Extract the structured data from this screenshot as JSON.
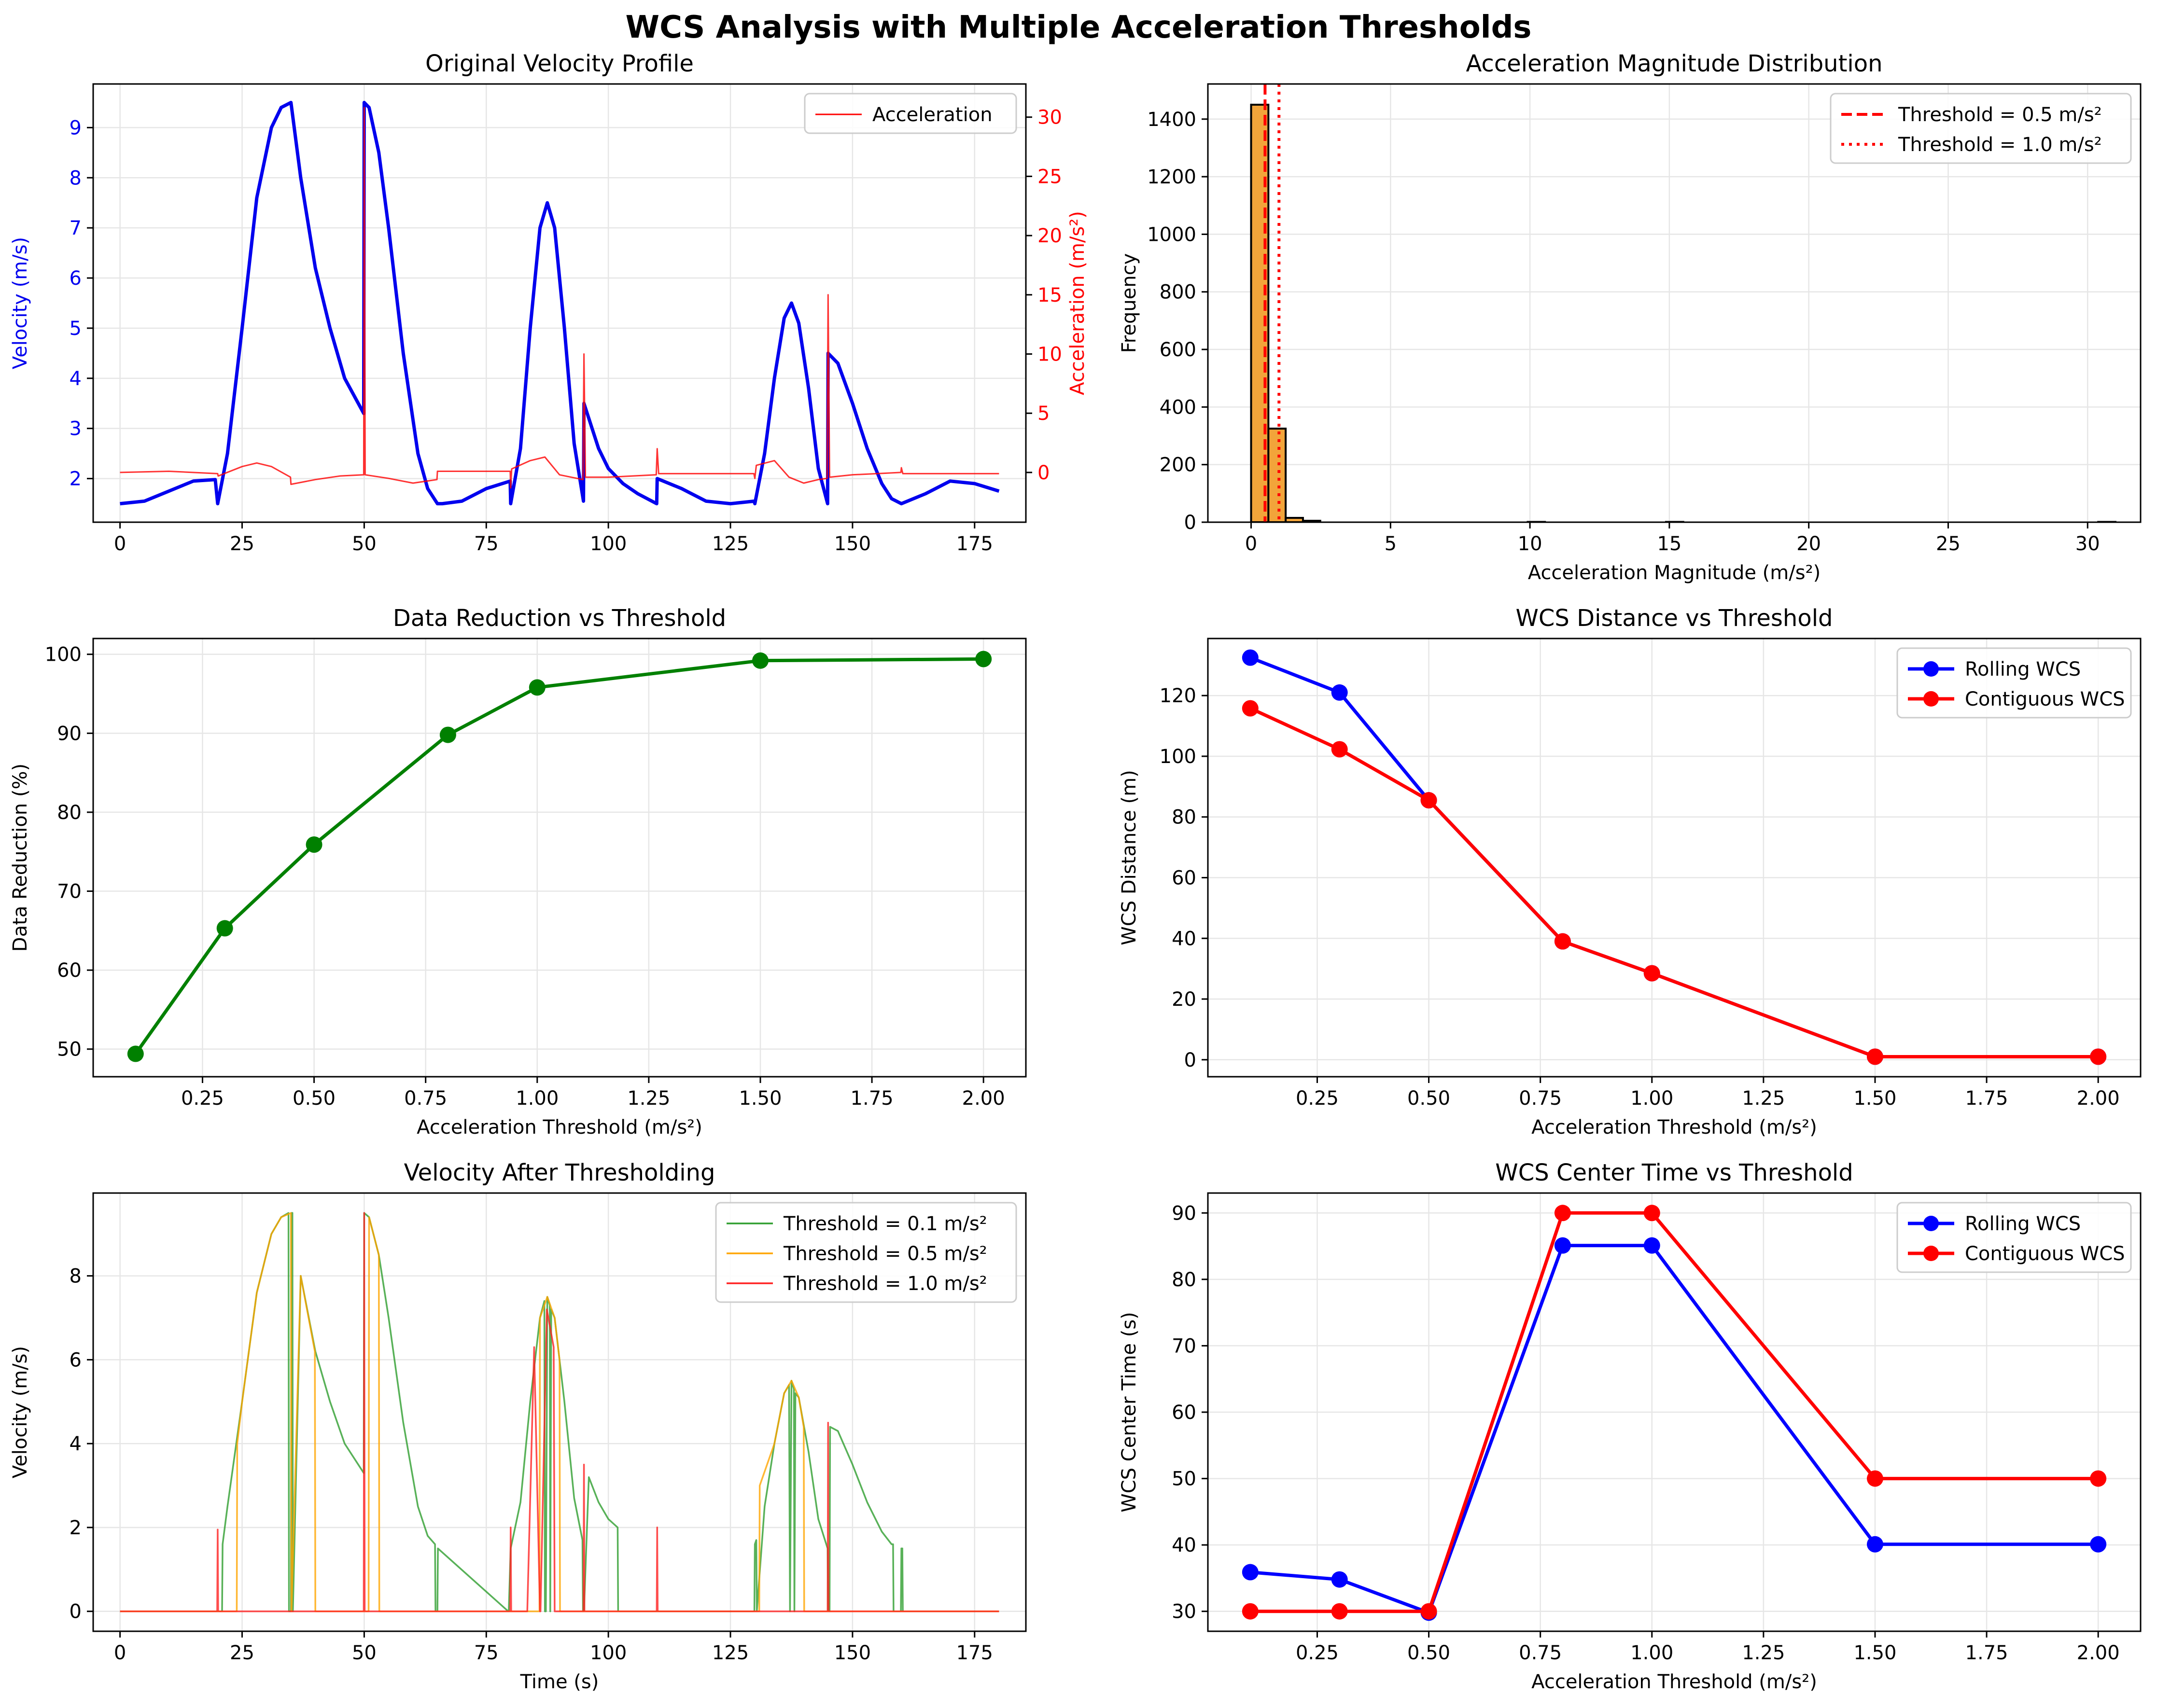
{
  "figure": {
    "suptitle": "WCS Analysis with Multiple Acceleration Thresholds"
  },
  "colors": {
    "velocity": "#0000ee",
    "acceleration": "#ff0000",
    "hist_fill": "#f2a43a",
    "reduction": "#008000",
    "rolling": "#0000ff",
    "contiguous": "#ff0000",
    "thr_01": "#2e9e2e",
    "thr_05": "#ffa500",
    "thr_10": "#ff2020"
  },
  "chart_data": [
    {
      "id": "velocity-profile",
      "type": "line",
      "title": "Original Velocity Profile",
      "xlabel": "",
      "ylabel": "Velocity (m/s)",
      "y2label": "Acceleration (m/s²)",
      "xlim": [
        -5.5,
        185.5
      ],
      "ylim": [
        1.13,
        9.87
      ],
      "y2lim": [
        -4.2,
        32.8
      ],
      "xticks": [
        0,
        25,
        50,
        75,
        100,
        125,
        150,
        175
      ],
      "yticks": [
        2,
        3,
        4,
        5,
        6,
        7,
        8,
        9
      ],
      "y2ticks": [
        0,
        5,
        10,
        15,
        20,
        25,
        30
      ],
      "legend": {
        "loc": "upper-right",
        "entries": [
          "Acceleration"
        ]
      },
      "grid": true,
      "series": [
        {
          "name": "Velocity",
          "axis": "left",
          "x": [
            0,
            5,
            10,
            15,
            19.5,
            20,
            22,
            25,
            28,
            31,
            33,
            35,
            37,
            40,
            43,
            46,
            49.9,
            50,
            51,
            53,
            55,
            58,
            61,
            63,
            65,
            66,
            70,
            75,
            79.9,
            80,
            82,
            84,
            86,
            87.5,
            89,
            91,
            93,
            94.9,
            95,
            96,
            98,
            100,
            103,
            106,
            109.9,
            110,
            115,
            120,
            125,
            129.9,
            130,
            132,
            134,
            136,
            137.5,
            139,
            141,
            143,
            144.9,
            145,
            147,
            150,
            153,
            156,
            158,
            160,
            165,
            170,
            175,
            180
          ],
          "y": [
            1.5,
            1.55,
            1.75,
            1.95,
            1.98,
            1.5,
            2.5,
            5.0,
            7.6,
            9.0,
            9.4,
            9.5,
            8.0,
            6.2,
            5.0,
            4.0,
            3.3,
            9.5,
            9.4,
            8.5,
            7.0,
            4.5,
            2.5,
            1.8,
            1.5,
            1.5,
            1.55,
            1.8,
            1.95,
            1.5,
            2.6,
            5.0,
            7.0,
            7.5,
            7.0,
            5.0,
            2.7,
            1.55,
            3.5,
            3.2,
            2.6,
            2.2,
            1.9,
            1.7,
            1.5,
            2.0,
            1.8,
            1.55,
            1.5,
            1.55,
            1.5,
            2.5,
            4.0,
            5.2,
            5.5,
            5.1,
            3.8,
            2.2,
            1.5,
            4.5,
            4.3,
            3.5,
            2.6,
            1.9,
            1.6,
            1.5,
            1.7,
            1.95,
            1.9,
            1.75
          ]
        },
        {
          "name": "Acceleration",
          "axis": "right",
          "x": [
            0,
            10,
            20,
            20.1,
            25,
            28,
            31,
            34.9,
            35,
            40,
            45,
            49.9,
            50,
            50.2,
            55,
            60,
            64.9,
            65,
            70,
            79.9,
            80,
            80.2,
            84,
            87,
            90,
            94.8,
            95,
            95.3,
            100,
            109.8,
            110,
            110.3,
            115,
            125,
            129.8,
            130,
            130.3,
            134,
            137,
            140,
            143,
            144.8,
            145,
            145.3,
            150,
            155,
            159.9,
            160,
            160.3,
            170,
            180
          ],
          "y": [
            0,
            0.1,
            -0.1,
            -0.3,
            0.5,
            0.8,
            0.5,
            -0.4,
            -1.0,
            -0.6,
            -0.3,
            -0.2,
            30.8,
            -0.2,
            -0.5,
            -0.9,
            -0.6,
            0.1,
            0.1,
            0.1,
            -1.3,
            0.3,
            1.0,
            1.3,
            -0.2,
            -0.6,
            10.0,
            -0.4,
            -0.4,
            -0.2,
            2.0,
            -0.1,
            -0.1,
            -0.1,
            -0.1,
            -0.5,
            0.6,
            1.0,
            -0.4,
            -0.9,
            -0.6,
            -0.5,
            15.0,
            -0.4,
            -0.2,
            -0.1,
            0,
            0.4,
            -0.1,
            -0.1,
            -0.1
          ]
        }
      ]
    },
    {
      "id": "accel-histogram",
      "type": "bar",
      "title": "Acceleration Magnitude Distribution",
      "xlabel": "Acceleration Magnitude (m/s²)",
      "ylabel": "Frequency",
      "xlim": [
        -1.55,
        31.9
      ],
      "ylim": [
        0,
        1522
      ],
      "xticks": [
        0,
        5,
        10,
        15,
        20,
        25,
        30
      ],
      "yticks": [
        0,
        200,
        400,
        600,
        800,
        1000,
        1200,
        1400
      ],
      "grid": true,
      "legend": {
        "loc": "upper-right",
        "entries": [
          "Threshold = 0.5 m/s²",
          "Threshold = 1.0 m/s²"
        ]
      },
      "bin_width": 0.62,
      "bins": [
        {
          "x": 0.0,
          "count": 1450
        },
        {
          "x": 0.62,
          "count": 325
        },
        {
          "x": 1.24,
          "count": 15
        },
        {
          "x": 1.86,
          "count": 5
        },
        {
          "x": 9.92,
          "count": 1
        },
        {
          "x": 14.88,
          "count": 1
        },
        {
          "x": 30.38,
          "count": 1
        }
      ],
      "vlines": [
        {
          "x": 0.5,
          "style": "dashed",
          "name": "Threshold = 0.5 m/s²"
        },
        {
          "x": 1.0,
          "style": "dotted",
          "name": "Threshold = 1.0 m/s²"
        }
      ]
    },
    {
      "id": "data-reduction",
      "type": "line",
      "title": "Data Reduction vs Threshold",
      "xlabel": "Acceleration Threshold (m/s²)",
      "ylabel": "Data Reduction (%)",
      "xlim": [
        0.005,
        2.095
      ],
      "ylim": [
        46.5,
        102.0
      ],
      "xticks": [
        0.25,
        0.5,
        0.75,
        1.0,
        1.25,
        1.5,
        1.75,
        2.0
      ],
      "xtick_labels": [
        "0.25",
        "0.50",
        "0.75",
        "1.00",
        "1.25",
        "1.50",
        "1.75",
        "2.00"
      ],
      "yticks": [
        50,
        60,
        70,
        80,
        90,
        100
      ],
      "grid": true,
      "series": [
        {
          "x": [
            0.1,
            0.3,
            0.5,
            0.8,
            1.0,
            1.5,
            2.0
          ],
          "y": [
            49.4,
            65.3,
            75.9,
            89.8,
            95.8,
            99.2,
            99.4
          ]
        }
      ]
    },
    {
      "id": "wcs-distance",
      "type": "line",
      "title": "WCS Distance vs Threshold",
      "xlabel": "Acceleration Threshold (m/s²)",
      "ylabel": "WCS Distance (m)",
      "xlim": [
        0.005,
        2.095
      ],
      "ylim": [
        -5.6,
        138.8
      ],
      "xticks": [
        0.25,
        0.5,
        0.75,
        1.0,
        1.25,
        1.5,
        1.75,
        2.0
      ],
      "xtick_labels": [
        "0.25",
        "0.50",
        "0.75",
        "1.00",
        "1.25",
        "1.50",
        "1.75",
        "2.00"
      ],
      "yticks": [
        0,
        20,
        40,
        60,
        80,
        100,
        120
      ],
      "grid": true,
      "legend": {
        "loc": "upper-right",
        "entries": [
          "Rolling WCS",
          "Contiguous WCS"
        ]
      },
      "series": [
        {
          "name": "Rolling WCS",
          "x": [
            0.1,
            0.3,
            0.5,
            0.8,
            1.0,
            1.5,
            2.0
          ],
          "y": [
            132.5,
            121.0,
            85.5,
            39.0,
            28.5,
            1.0,
            1.0
          ]
        },
        {
          "name": "Contiguous WCS",
          "x": [
            0.1,
            0.3,
            0.5,
            0.8,
            1.0,
            1.5,
            2.0
          ],
          "y": [
            115.8,
            102.3,
            85.5,
            39.0,
            28.5,
            1.0,
            1.0
          ]
        }
      ]
    },
    {
      "id": "velocity-thresholding",
      "type": "line",
      "title": "Velocity After Thresholding",
      "xlabel": "Time (s)",
      "ylabel": "Velocity (m/s)",
      "xlim": [
        -5.5,
        185.5
      ],
      "ylim": [
        -0.475,
        9.975
      ],
      "xticks": [
        0,
        25,
        50,
        75,
        100,
        125,
        150,
        175
      ],
      "yticks": [
        0,
        2,
        4,
        6,
        8
      ],
      "grid": true,
      "legend": {
        "loc": "upper-right",
        "entries": [
          "Threshold = 0.1 m/s²",
          "Threshold = 0.5 m/s²",
          "Threshold = 1.0 m/s²"
        ]
      },
      "series": [
        {
          "name": "Threshold = 0.1 m/s²",
          "x": [
            0,
            20.9,
            21,
            22,
            25,
            28,
            31,
            33,
            34.5,
            34.6,
            35,
            35.1,
            35.3,
            35.4,
            37,
            40,
            43,
            46,
            49.9,
            50,
            51,
            53,
            55,
            58,
            61,
            63,
            64.5,
            64.6,
            65,
            65.1,
            79.5,
            79.6,
            80,
            82,
            84,
            86,
            86.9,
            87,
            87.2,
            87.5,
            88,
            88.1,
            88.3,
            89,
            91,
            93,
            94.7,
            94.8,
            95,
            96,
            98,
            100,
            101.9,
            102,
            129.9,
            130,
            130.3,
            130.4,
            132,
            134,
            136,
            137,
            137.2,
            137.5,
            138,
            138.1,
            138.3,
            139,
            141,
            143,
            144.9,
            145,
            145.3,
            145.4,
            147,
            150,
            153,
            156,
            158,
            158.3,
            158.4,
            159.9,
            160,
            160.2,
            160.3,
            180
          ],
          "y": [
            0,
            0,
            1.6,
            2.5,
            5.0,
            7.6,
            9.0,
            9.4,
            9.5,
            0,
            0,
            9.5,
            9.5,
            0,
            8.0,
            6.2,
            5.0,
            4.0,
            3.3,
            9.5,
            9.4,
            8.5,
            7.0,
            4.5,
            2.5,
            1.8,
            1.6,
            0,
            0,
            1.5,
            0,
            0,
            1.5,
            2.6,
            5.0,
            7.0,
            7.4,
            0,
            0,
            7.5,
            7.3,
            0,
            7.2,
            7.0,
            5.0,
            2.7,
            1.7,
            0,
            0,
            3.2,
            2.6,
            2.2,
            2.0,
            0,
            0,
            1.6,
            1.7,
            0,
            2.5,
            4.0,
            5.2,
            5.4,
            0,
            5.5,
            5.3,
            0,
            5.2,
            5.1,
            3.8,
            2.2,
            1.5,
            0,
            0,
            4.4,
            4.3,
            3.5,
            2.6,
            1.9,
            1.6,
            1.6,
            0,
            0,
            1.5,
            1.5,
            0,
            0
          ]
        },
        {
          "name": "Threshold = 0.5 m/s²",
          "x": [
            0,
            23.9,
            24,
            25,
            28,
            31,
            33,
            35,
            35.1,
            37,
            39.9,
            40,
            50.9,
            51,
            53,
            53.1,
            85.9,
            86,
            87.5,
            89,
            90,
            90.1,
            130.9,
            131,
            134,
            136,
            137.5,
            139,
            140,
            140.1,
            180
          ],
          "y": [
            0,
            0,
            4.0,
            5.0,
            7.6,
            9.0,
            9.4,
            9.5,
            0,
            8.0,
            6.2,
            0,
            0,
            9.4,
            8.5,
            0,
            0,
            7.0,
            7.5,
            7.0,
            6.0,
            0,
            0,
            3.0,
            4.0,
            5.2,
            5.5,
            5.1,
            4.4,
            0,
            0
          ]
        },
        {
          "name": "Threshold = 1.0 m/s²",
          "x": [
            0,
            19.9,
            20,
            20.1,
            49.9,
            50,
            50.1,
            79.9,
            80,
            80.1,
            83.4,
            84.8,
            86,
            86.1,
            87.4,
            88.8,
            89,
            89.1,
            94.9,
            95,
            95.1,
            109.9,
            110,
            110.1,
            144.9,
            145,
            145.1,
            180
          ],
          "y": [
            0,
            0,
            1.95,
            0,
            0,
            9.5,
            0,
            0,
            2.0,
            0,
            0,
            6.3,
            0,
            0,
            7.2,
            6.3,
            0,
            0,
            0,
            3.5,
            0,
            0,
            2.0,
            0,
            0,
            4.5,
            0,
            0
          ]
        }
      ]
    },
    {
      "id": "wcs-center-time",
      "type": "line",
      "title": "WCS Center Time vs Threshold",
      "xlabel": "Acceleration Threshold (m/s²)",
      "ylabel": "WCS Center Time (s)",
      "xlim": [
        0.005,
        2.095
      ],
      "ylim": [
        27.0,
        93.0
      ],
      "xticks": [
        0.25,
        0.5,
        0.75,
        1.0,
        1.25,
        1.5,
        1.75,
        2.0
      ],
      "xtick_labels": [
        "0.25",
        "0.50",
        "0.75",
        "1.00",
        "1.25",
        "1.50",
        "1.75",
        "2.00"
      ],
      "yticks": [
        30,
        40,
        50,
        60,
        70,
        80,
        90
      ],
      "grid": true,
      "legend": {
        "loc": "upper-right",
        "entries": [
          "Rolling WCS",
          "Contiguous WCS"
        ]
      },
      "series": [
        {
          "name": "Rolling WCS",
          "x": [
            0.1,
            0.3,
            0.5,
            0.8,
            1.0,
            1.5,
            2.0
          ],
          "y": [
            35.9,
            34.8,
            29.8,
            85.1,
            85.1,
            40.1,
            40.1
          ]
        },
        {
          "name": "Contiguous WCS",
          "x": [
            0.1,
            0.3,
            0.5,
            0.8,
            1.0,
            1.5,
            2.0
          ],
          "y": [
            30.0,
            30.0,
            30.0,
            90.0,
            90.0,
            50.0,
            50.0
          ]
        }
      ]
    }
  ]
}
